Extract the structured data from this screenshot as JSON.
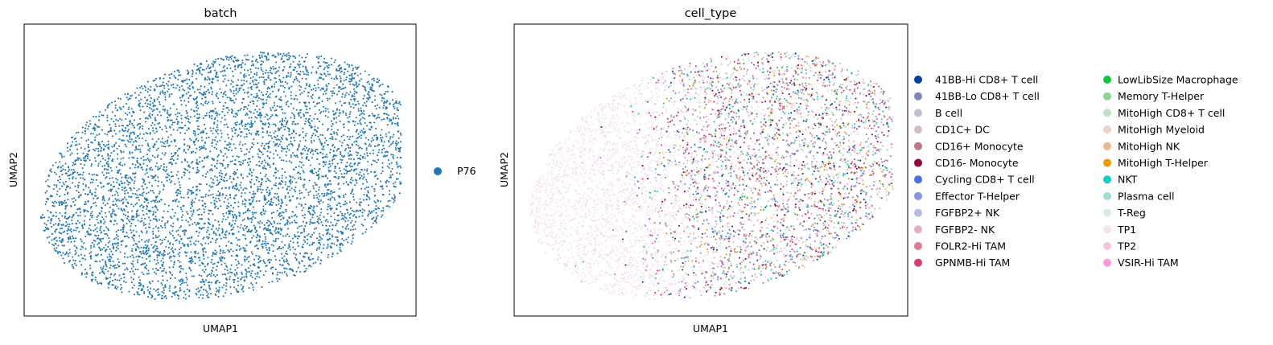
{
  "chart_data": [
    {
      "type": "scatter",
      "title": "batch",
      "xlabel": "UMAP1",
      "ylabel": "UMAP2",
      "grid": false,
      "ticks": false,
      "legend_placement": "right",
      "categories": [
        "P76"
      ],
      "colors": {
        "P76": "#1f77b4"
      },
      "point_count_approx": 5500,
      "cloud": "single dense elliptical cloud filling the frame, tilted up to the right"
    },
    {
      "type": "scatter",
      "title": "cell_type",
      "xlabel": "UMAP1",
      "ylabel": "UMAP2",
      "grid": false,
      "ticks": false,
      "legend_placement": "right",
      "legend_columns": 2,
      "categories": [
        "41BB-Hi CD8+ T cell",
        "41BB-Lo CD8+ T cell",
        "B cell",
        "CD1C+ DC",
        "CD16+ Monocyte",
        "CD16- Monocyte",
        "Cycling CD8+ T cell",
        "Effector T-Helper",
        "FGFBP2+ NK",
        "FGFBP2- NK",
        "FOLR2-Hi TAM",
        "GPNMB-Hi TAM",
        "LowLibSize Macrophage",
        "Memory T-Helper",
        "MitoHigh CD8+ T cell",
        "MitoHigh Myeloid",
        "MitoHigh NK",
        "MitoHigh T-Helper",
        "NKT",
        "Plasma cell",
        "T-Reg",
        "TP1",
        "TP2",
        "VSIR-Hi TAM"
      ],
      "colors": [
        "#023fa5",
        "#7d87b9",
        "#bec1d4",
        "#d6bcc0",
        "#bb7784",
        "#8e063b",
        "#4a6fe3",
        "#8595e1",
        "#b5bbe3",
        "#e6afb9",
        "#e07b91",
        "#d33f6a",
        "#11c638",
        "#8dd593",
        "#c6dec7",
        "#ead3c6",
        "#f0b98d",
        "#ef9708",
        "#0fcfc0",
        "#9cded6",
        "#d5eae7",
        "#f3e1eb",
        "#f6c4e1",
        "#f79cd4"
      ],
      "point_count_approx": 5500,
      "distribution": "TP1 dominates the left half of the cloud; mixed immune cell types dominate the right half"
    }
  ]
}
